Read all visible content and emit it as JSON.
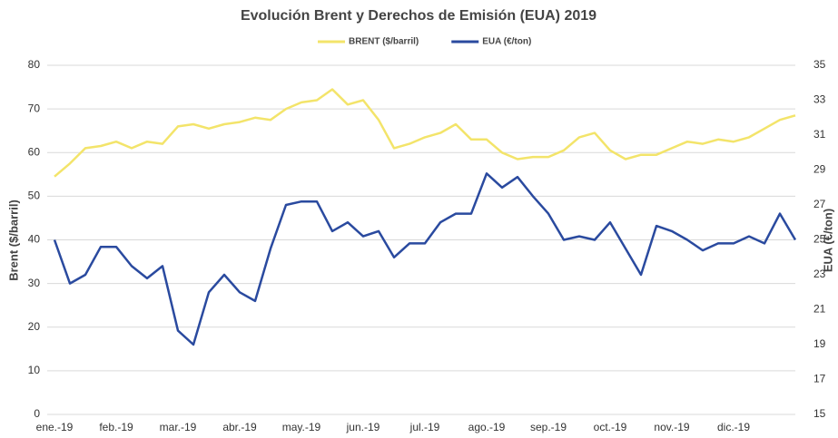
{
  "chart_data": {
    "type": "line",
    "title": "Evolución Brent y Derechos de Emisión (EUA) 2019",
    "y_label": "Brent ($/barril)",
    "y2_label": "EUA (€/ton)",
    "categories": [
      "ene.-19",
      null,
      null,
      null,
      "feb.-19",
      null,
      null,
      null,
      "mar.-19",
      null,
      null,
      null,
      "abr.-19",
      null,
      null,
      null,
      "may.-19",
      null,
      null,
      null,
      "jun.-19",
      null,
      null,
      null,
      "jul.-19",
      null,
      null,
      null,
      "ago.-19",
      null,
      null,
      null,
      "sep.-19",
      null,
      null,
      null,
      "oct.-19",
      null,
      null,
      null,
      "nov.-19",
      null,
      null,
      null,
      "dic.-19",
      null,
      null,
      null,
      null
    ],
    "series": [
      {
        "name": "BRENT ($/barril)",
        "color": "#f3e46a",
        "axis": "y",
        "values": [
          54.5,
          57.5,
          61,
          61.5,
          62.5,
          61,
          62.5,
          62,
          66,
          66.5,
          65.5,
          66.5,
          67,
          68,
          67.5,
          70,
          71.5,
          72,
          74.5,
          71,
          72,
          67.5,
          61,
          62,
          63.5,
          64.5,
          66.5,
          63,
          63,
          60,
          58.5,
          59,
          59,
          60.5,
          63.5,
          64.5,
          60.5,
          58.5,
          59.5,
          59.5,
          61,
          62.5,
          62,
          63,
          62.5,
          63.5,
          65.5,
          67.5,
          68.5
        ]
      },
      {
        "name": "EUA (€/ton)",
        "color": "#2a4a9f",
        "axis": "y2",
        "values": [
          25,
          22.5,
          23,
          24.6,
          24.6,
          23.5,
          22.8,
          23.5,
          19.8,
          19,
          22,
          23,
          22,
          21.5,
          24.5,
          27,
          27.2,
          27.2,
          25.5,
          26,
          25.2,
          25.5,
          24,
          24.8,
          24.8,
          26,
          26.5,
          26.5,
          28.8,
          28,
          28.6,
          27.5,
          26.5,
          25,
          25.2,
          25,
          26,
          24.5,
          23,
          25.8,
          25.5,
          25,
          24.4,
          24.8,
          24.8,
          25.2,
          24.8,
          26.5,
          25
        ]
      }
    ],
    "ylim": [
      0,
      80
    ],
    "yticks": [
      0,
      10,
      20,
      30,
      40,
      50,
      60,
      70,
      80
    ],
    "y2lim": [
      15,
      35
    ],
    "y2ticks": [
      15,
      17,
      19,
      21,
      23,
      25,
      27,
      29,
      31,
      33,
      35
    ],
    "grid": true
  }
}
